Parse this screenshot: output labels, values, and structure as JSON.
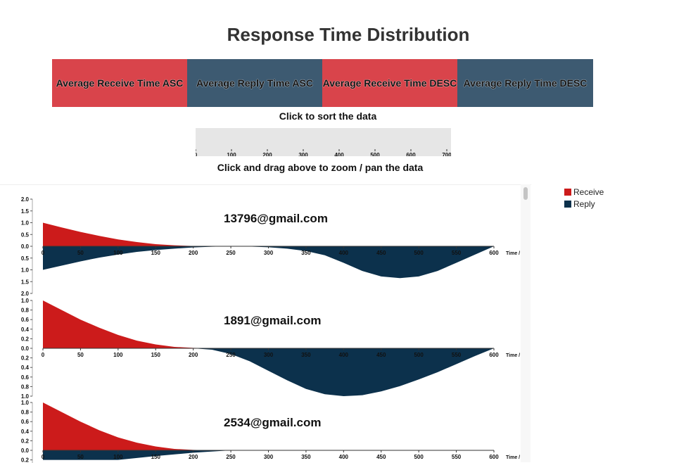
{
  "title": "Response Time Distribution",
  "sort_buttons": [
    {
      "label": "Average Receive Time ASC",
      "color": "#d9444b"
    },
    {
      "label": "Average Reply Time ASC",
      "color": "#3d5a71"
    },
    {
      "label": "Average Receive Time DESC",
      "color": "#d9444b"
    },
    {
      "label": "Average Reply Time DESC",
      "color": "#3d5a71"
    }
  ],
  "sort_hint": "Click to sort the data",
  "zoom_hint": "Click and drag above to zoom / pan the data",
  "brush_ticks": [
    "0",
    "100",
    "200",
    "300",
    "400",
    "500",
    "600",
    "700"
  ],
  "legend": [
    {
      "label": "Receive",
      "color": "#cc1b1b"
    },
    {
      "label": "Reply",
      "color": "#0c314c"
    }
  ],
  "colors": {
    "receive": "#cc1b1b",
    "reply": "#0c314c"
  },
  "chart_data": [
    {
      "type": "area",
      "title": "13796@gmail.com",
      "xlabel": "Time /",
      "xlim": [
        0,
        600
      ],
      "x_ticks": [
        "0",
        "50",
        "100",
        "150",
        "200",
        "250",
        "300",
        "350",
        "400",
        "450",
        "500",
        "550",
        "600"
      ],
      "y_top_ticks": [
        "2.0",
        "1.5",
        "1.0",
        "0.5",
        "0.0"
      ],
      "y_bottom_ticks": [
        "0.5",
        "1.0",
        "1.5",
        "2.0"
      ],
      "ylim_top": [
        0,
        2.0
      ],
      "ylim_bottom": [
        0,
        2.0
      ],
      "series": [
        {
          "name": "Receive",
          "x": [
            0,
            25,
            50,
            75,
            100,
            125,
            150,
            175,
            200,
            225,
            250
          ],
          "y": [
            1.0,
            0.8,
            0.61,
            0.44,
            0.29,
            0.18,
            0.09,
            0.04,
            0.01,
            0.0,
            0.0
          ]
        },
        {
          "name": "Reply",
          "x": [
            0,
            25,
            50,
            75,
            100,
            125,
            150,
            175,
            200,
            225,
            250,
            275,
            300,
            325,
            350,
            375,
            400,
            425,
            450,
            475,
            500,
            525,
            550,
            575,
            600
          ],
          "y": [
            1.0,
            0.82,
            0.64,
            0.48,
            0.35,
            0.24,
            0.16,
            0.1,
            0.05,
            0.02,
            0.0,
            0.01,
            0.04,
            0.1,
            0.2,
            0.38,
            0.7,
            1.05,
            1.28,
            1.35,
            1.28,
            1.05,
            0.7,
            0.35,
            0.0
          ]
        }
      ]
    },
    {
      "type": "area",
      "title": "1891@gmail.com",
      "xlabel": "Time /",
      "xlim": [
        0,
        600
      ],
      "x_ticks": [
        "0",
        "50",
        "100",
        "150",
        "200",
        "250",
        "300",
        "350",
        "400",
        "450",
        "500",
        "550",
        "600"
      ],
      "y_top_ticks": [
        "1.0",
        "0.8",
        "0.6",
        "0.4",
        "0.2",
        "0.0"
      ],
      "y_bottom_ticks": [
        "0.2",
        "0.4",
        "0.6",
        "0.8",
        "1.0"
      ],
      "ylim_top": [
        0,
        1.0
      ],
      "ylim_bottom": [
        0,
        1.0
      ],
      "series": [
        {
          "name": "Receive",
          "x": [
            0,
            25,
            50,
            75,
            100,
            125,
            150,
            175,
            200,
            225
          ],
          "y": [
            1.0,
            0.8,
            0.6,
            0.43,
            0.28,
            0.16,
            0.08,
            0.03,
            0.01,
            0.0
          ]
        },
        {
          "name": "Reply",
          "x": [
            200,
            225,
            250,
            275,
            300,
            325,
            350,
            375,
            400,
            425,
            450,
            475,
            500,
            525,
            550,
            575,
            600
          ],
          "y": [
            0.0,
            0.03,
            0.12,
            0.27,
            0.47,
            0.67,
            0.85,
            0.96,
            1.0,
            0.98,
            0.9,
            0.79,
            0.65,
            0.5,
            0.33,
            0.16,
            0.0
          ]
        }
      ]
    },
    {
      "type": "area",
      "title": "2534@gmail.com",
      "xlabel": "Time /",
      "xlim": [
        0,
        600
      ],
      "x_ticks": [
        "0",
        "50",
        "100",
        "150",
        "200",
        "250",
        "300",
        "350",
        "400",
        "450",
        "500",
        "550",
        "600"
      ],
      "y_top_ticks": [
        "1.0",
        "0.8",
        "0.6",
        "0.4",
        "0.2",
        "0.0"
      ],
      "y_bottom_ticks": [
        "0.2"
      ],
      "ylim_top": [
        0,
        1.0
      ],
      "ylim_bottom": [
        0,
        1.0
      ],
      "series": [
        {
          "name": "Receive",
          "x": [
            0,
            25,
            50,
            75,
            100,
            125,
            150,
            175,
            200,
            225,
            250
          ],
          "y": [
            1.0,
            0.8,
            0.6,
            0.42,
            0.27,
            0.16,
            0.08,
            0.03,
            0.01,
            0.0,
            0.0
          ]
        },
        {
          "name": "Reply",
          "x": [
            0,
            50,
            100,
            150,
            200,
            250
          ],
          "y": [
            0.2,
            0.2,
            0.2,
            0.12,
            0.05,
            0.0
          ]
        }
      ]
    }
  ]
}
